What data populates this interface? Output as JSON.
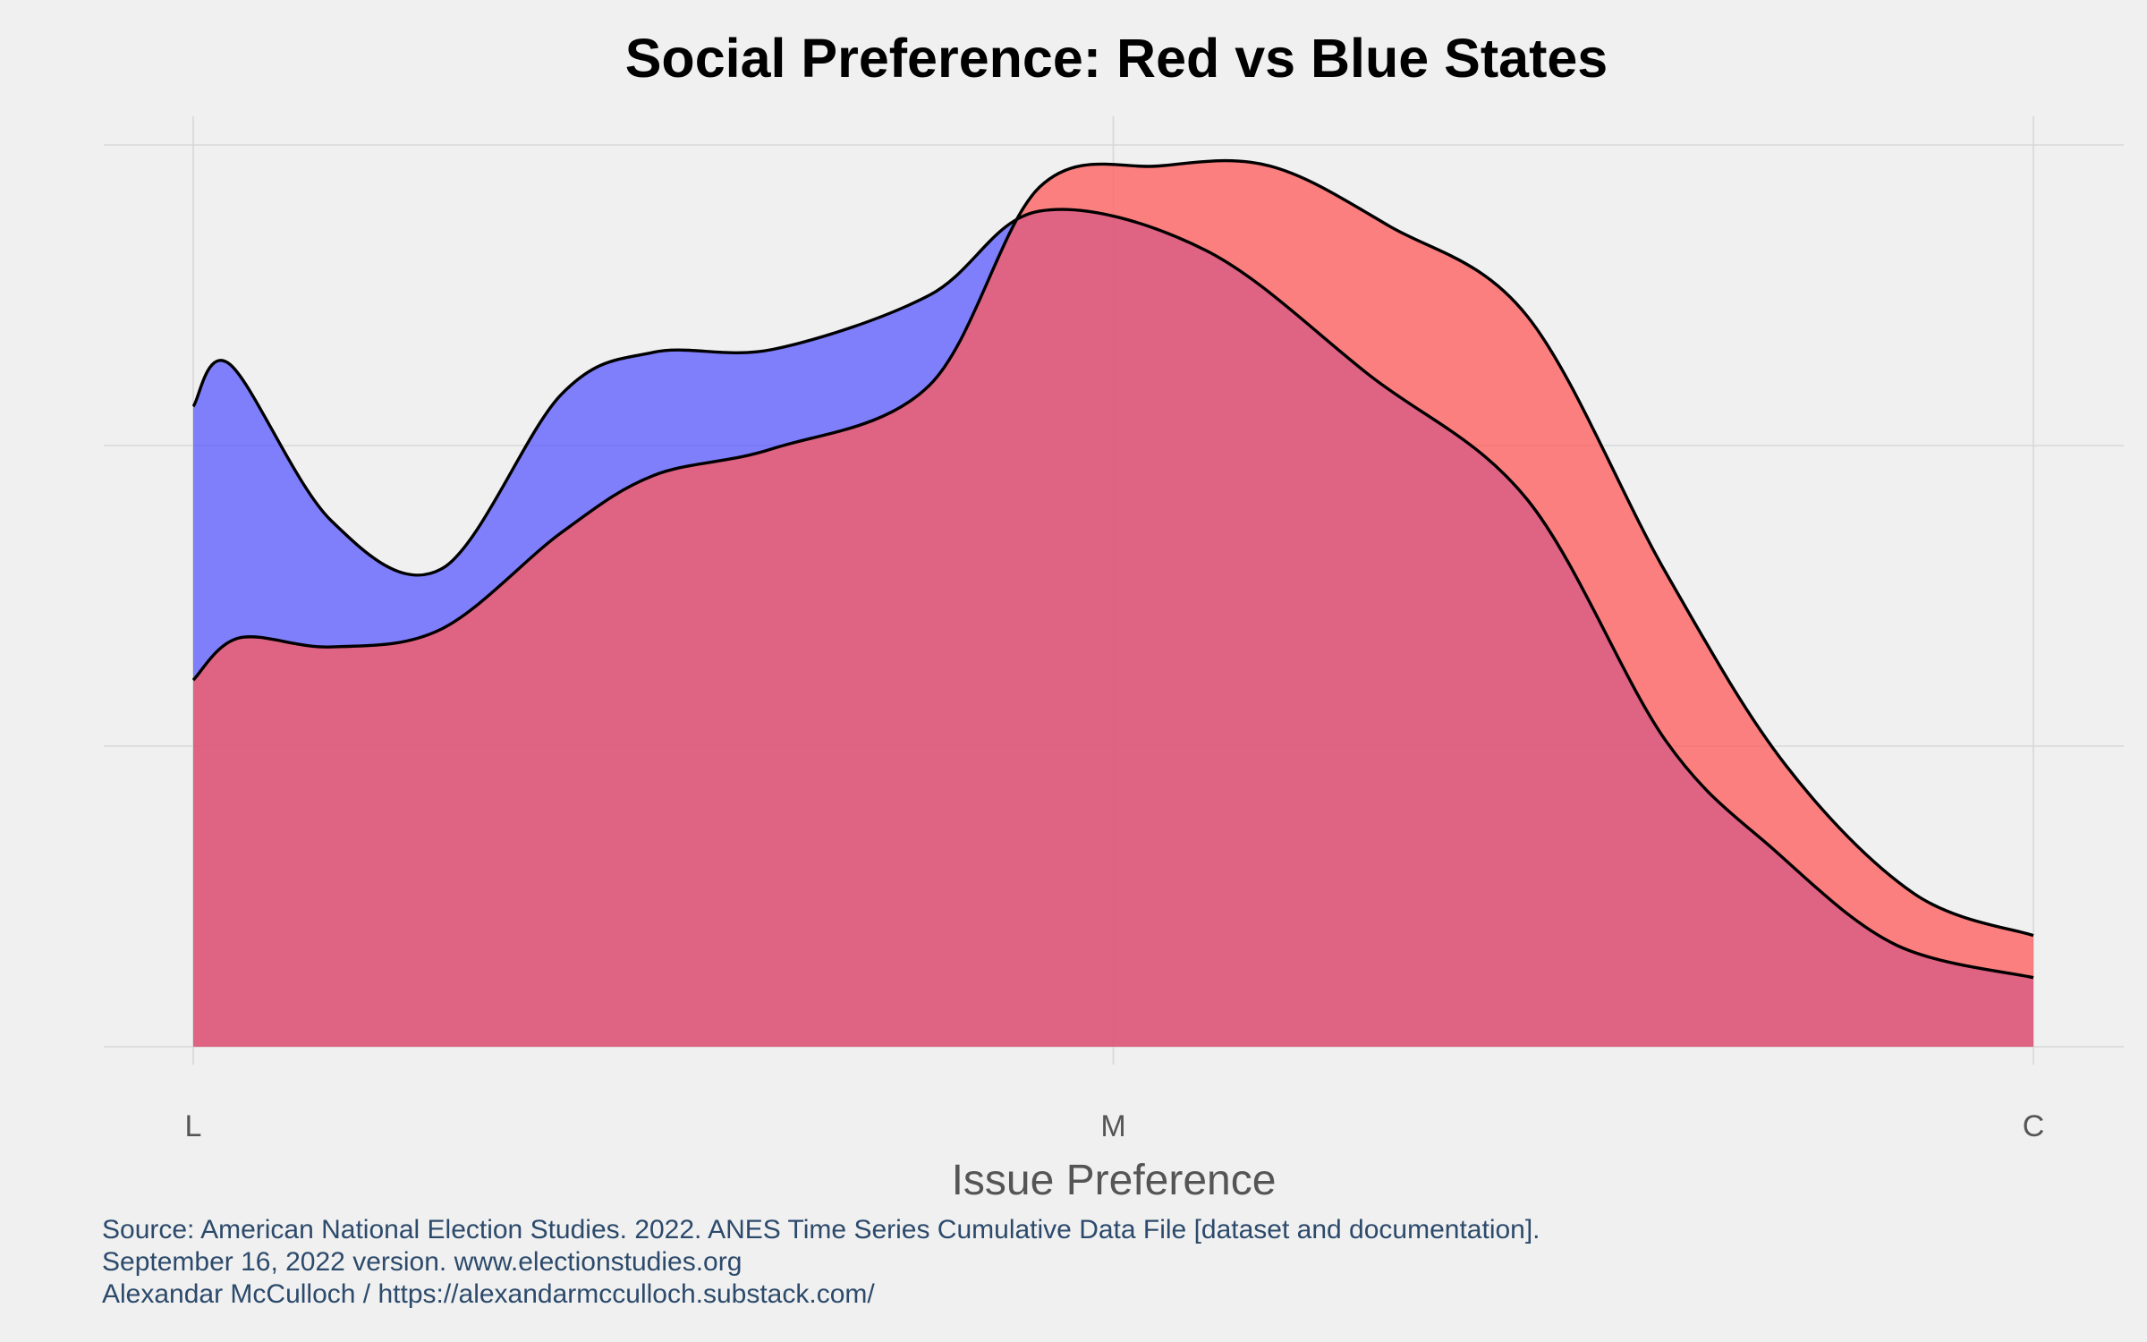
{
  "chart_data": {
    "type": "area",
    "title": "Social Preference: Red vs Blue States",
    "xlabel": "Issue Preference",
    "ylabel": "",
    "grid": true,
    "x_range": [
      0,
      2
    ],
    "y_range": [
      0,
      3
    ],
    "x_ticks": [
      {
        "value": 0,
        "label": "L"
      },
      {
        "value": 1,
        "label": "M"
      },
      {
        "value": 2,
        "label": "C"
      }
    ],
    "y_gridlines": [
      0,
      1,
      2,
      3
    ],
    "caption": [
      "Source: American National Election Studies. 2022. ANES Time Series Cumulative Data File [dataset and documentation].",
      "September 16, 2022 version. www.electionstudies.org",
      "Alexandar McCulloch / https://alexandarmcculloch.substack.com/"
    ],
    "series": [
      {
        "name": "Blue States",
        "color": "#5a5aff",
        "opacity": 0.75,
        "x": [
          0,
          0.04,
          0.15,
          0.27,
          0.4,
          0.5,
          0.63,
          0.8,
          0.92,
          1.1,
          1.28,
          1.45,
          1.6,
          1.72,
          1.85,
          2
        ],
        "y": [
          2.13,
          2.27,
          1.75,
          1.59,
          2.17,
          2.31,
          2.32,
          2.5,
          2.78,
          2.65,
          2.23,
          1.82,
          1.02,
          0.65,
          0.34,
          0.23
        ]
      },
      {
        "name": "Red States",
        "color": "#ff5a5a",
        "opacity": 0.75,
        "x": [
          0,
          0.05,
          0.15,
          0.27,
          0.4,
          0.5,
          0.63,
          0.8,
          0.92,
          1.05,
          1.17,
          1.3,
          1.45,
          1.6,
          1.73,
          1.87,
          2
        ],
        "y": [
          1.22,
          1.36,
          1.33,
          1.39,
          1.71,
          1.9,
          1.99,
          2.2,
          2.86,
          2.93,
          2.93,
          2.73,
          2.43,
          1.58,
          0.94,
          0.51,
          0.37
        ]
      }
    ]
  }
}
